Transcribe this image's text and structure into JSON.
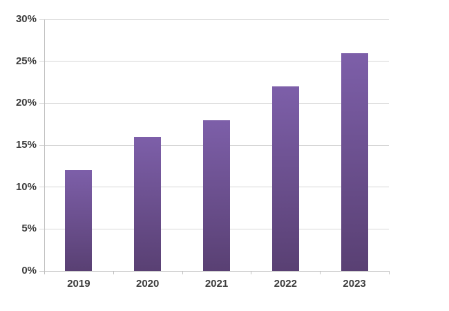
{
  "chart_data": {
    "type": "bar",
    "title": "",
    "categories": [
      "2019",
      "2020",
      "2021",
      "2022",
      "2023"
    ],
    "values": [
      12,
      16,
      18,
      22,
      26
    ],
    "unit": "%",
    "xlabel": "",
    "ylabel": "",
    "ylim": [
      0,
      30
    ],
    "ytick_step": 5,
    "ytick_labels": [
      "0%",
      "5%",
      "10%",
      "15%",
      "20%",
      "25%",
      "30%"
    ],
    "grid": true,
    "legend": "none",
    "colors": {
      "bar_gradient_top": "#7d5fa9",
      "bar_gradient_bottom": "#594073",
      "gridline": "#d6d6d6",
      "axis": "#c0c0c0",
      "label_text": "#3d3d3d",
      "background": "#ffffff"
    }
  }
}
